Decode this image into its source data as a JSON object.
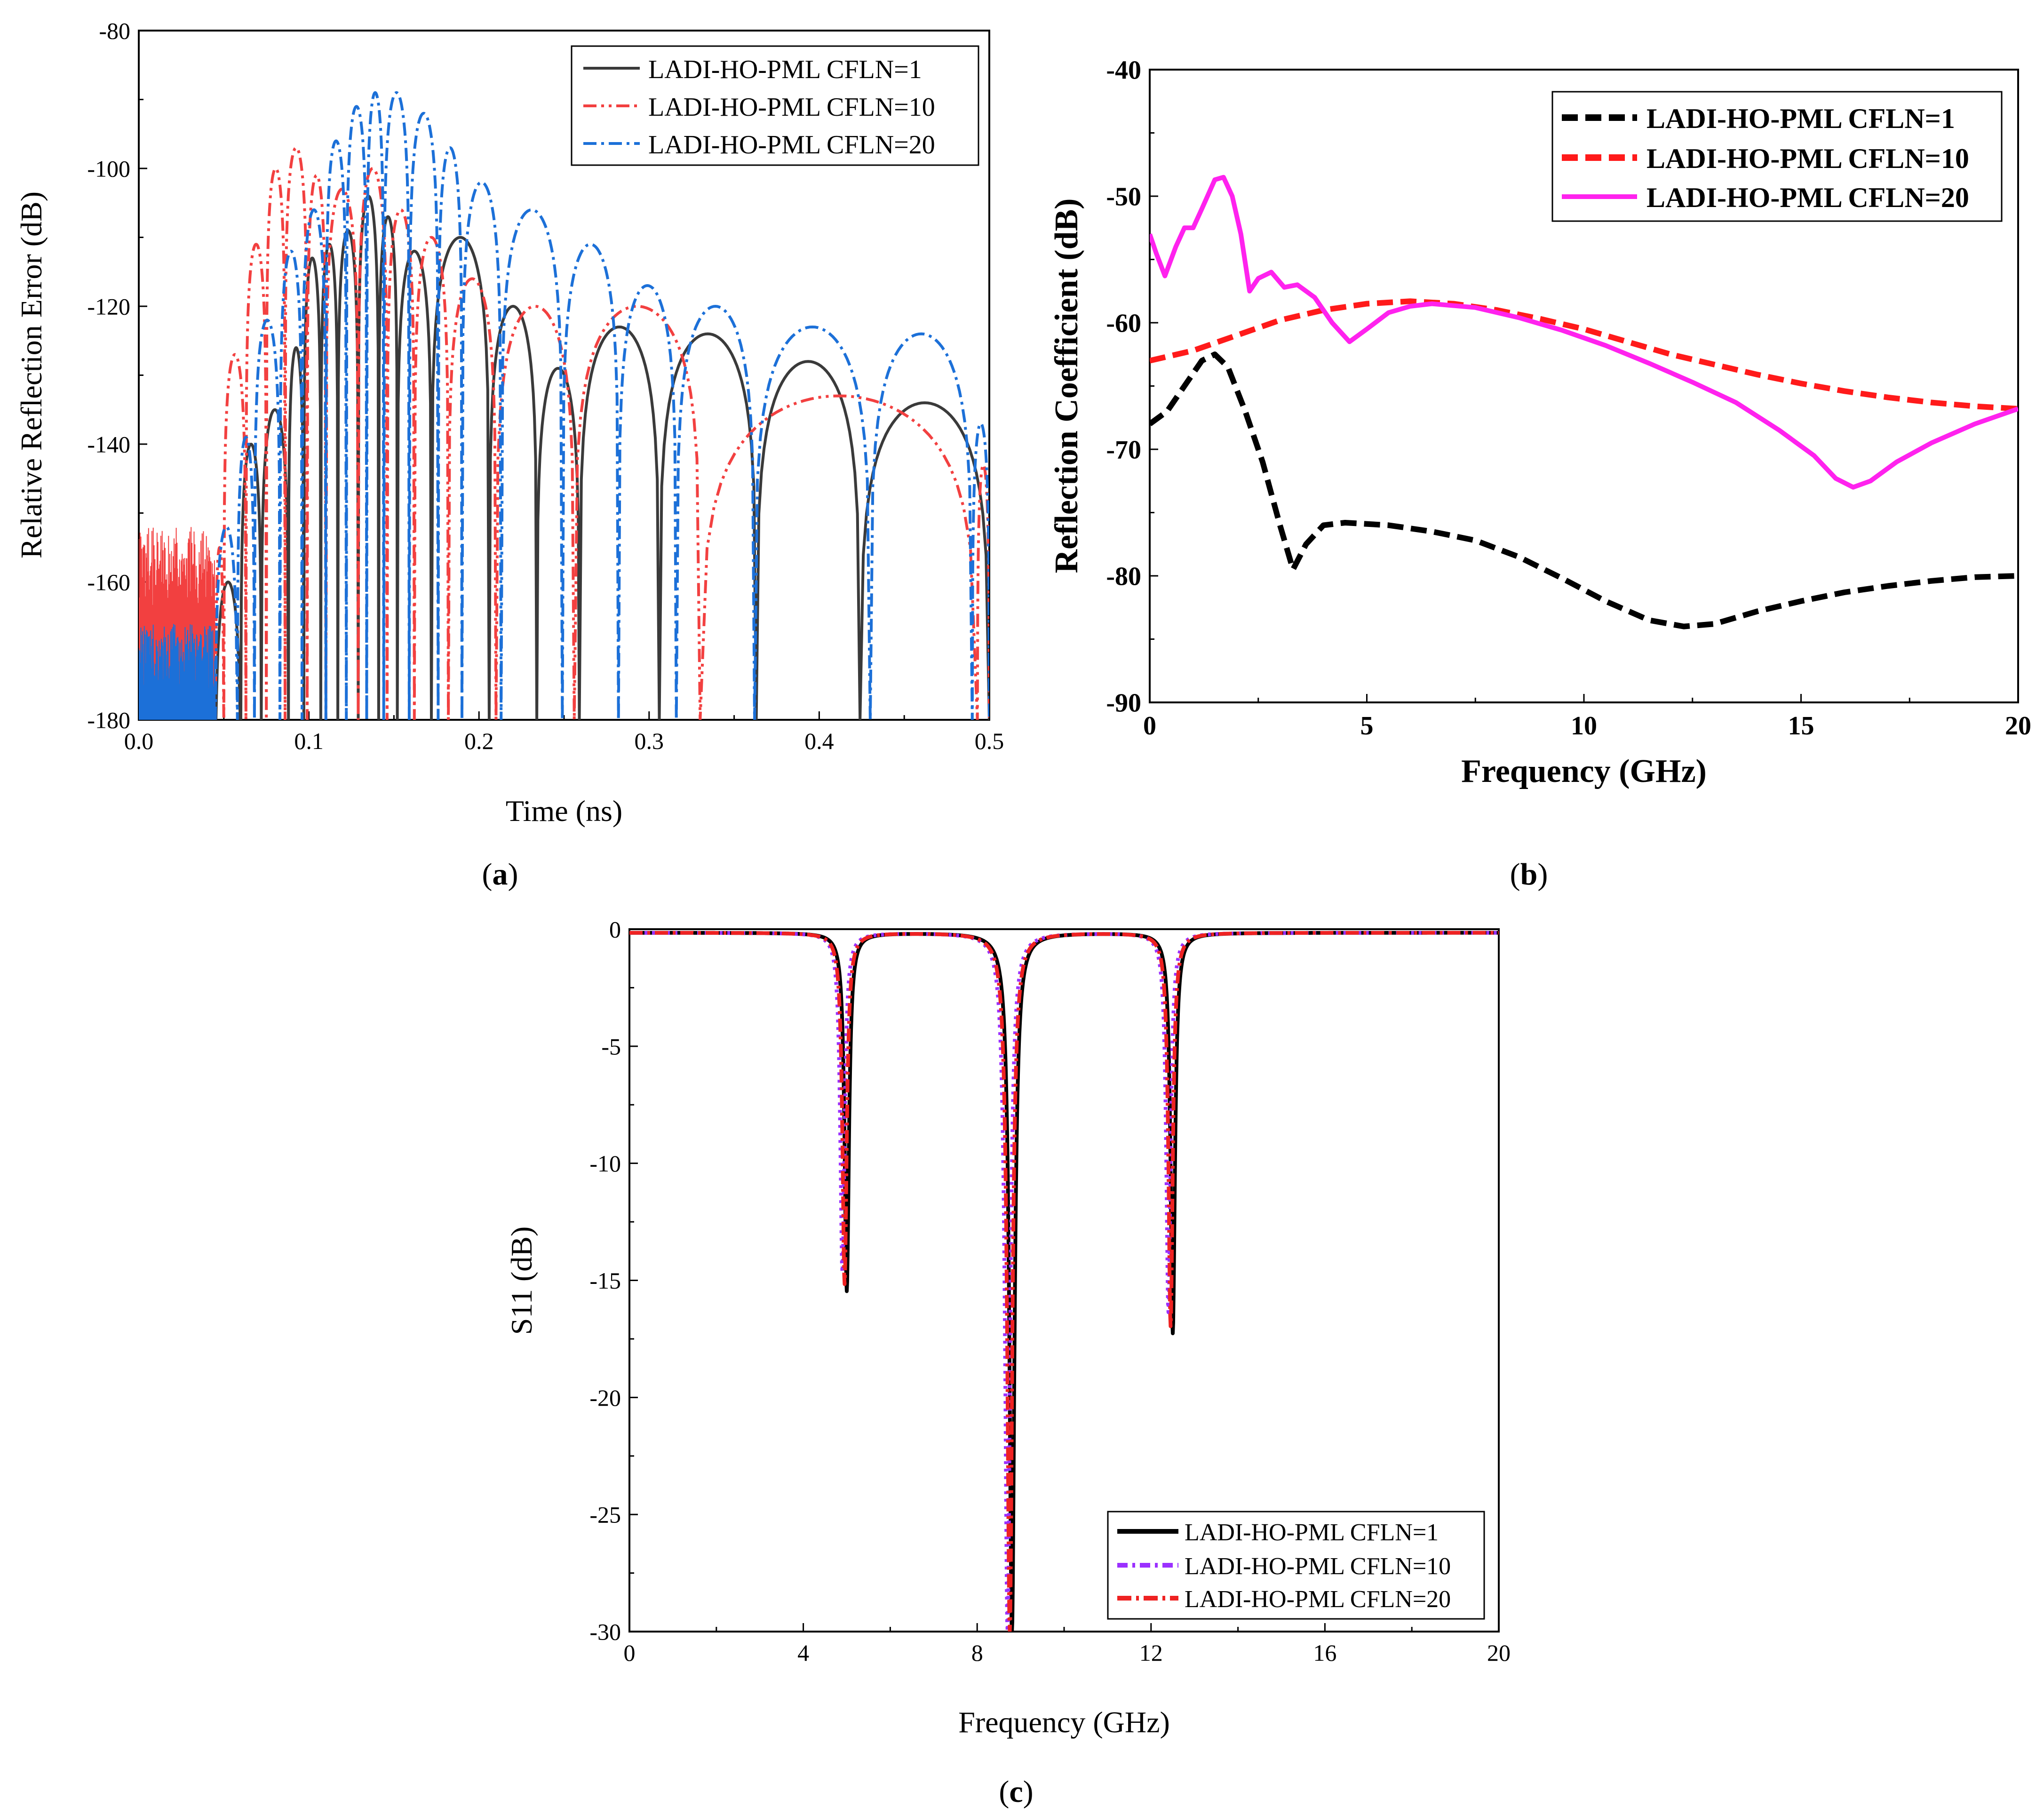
{
  "panel_labels": {
    "a": "a",
    "b": "b",
    "c": "c"
  },
  "chart_data": [
    {
      "id": "a",
      "type": "line",
      "xlabel": "Time (ns)",
      "ylabel": "Relative Reflection Error (dB)",
      "xlim": [
        0.0,
        0.5
      ],
      "ylim": [
        -180,
        -80
      ],
      "xticks": [
        "0.0",
        "0.1",
        "0.2",
        "0.3",
        "0.4",
        "0.5"
      ],
      "yticks": [
        "-80",
        "-100",
        "-120",
        "-140",
        "-160",
        "-180"
      ],
      "legend_position": "top-right",
      "series": [
        {
          "name": "LADI-HO-PML CFLN=1",
          "color": "#3a3a3a",
          "style": "solid",
          "noise_until": 0.045,
          "floor": -180,
          "lobes": [
            [
              0.045,
              0.06,
              -160
            ],
            [
              0.06,
              0.072,
              -140
            ],
            [
              0.072,
              0.088,
              -135
            ],
            [
              0.088,
              0.097,
              -126
            ],
            [
              0.097,
              0.107,
              -113
            ],
            [
              0.107,
              0.117,
              -111
            ],
            [
              0.117,
              0.129,
              -109
            ],
            [
              0.129,
              0.141,
              -104
            ],
            [
              0.141,
              0.152,
              -107
            ],
            [
              0.152,
              0.172,
              -112
            ],
            [
              0.172,
              0.206,
              -110
            ],
            [
              0.206,
              0.234,
              -120
            ],
            [
              0.234,
              0.259,
              -129
            ],
            [
              0.259,
              0.306,
              -123
            ],
            [
              0.306,
              0.363,
              -124
            ],
            [
              0.363,
              0.424,
              -128
            ],
            [
              0.424,
              0.5,
              -134
            ]
          ]
        },
        {
          "name": "LADI-HO-PML CFLN=10",
          "color": "#f24040",
          "style": "dash-dot-dot",
          "noise_until": 0.045,
          "floor": -180,
          "lobes": [
            [
              0.045,
              0.05,
              -155
            ],
            [
              0.05,
              0.063,
              -127
            ],
            [
              0.063,
              0.075,
              -111
            ],
            [
              0.075,
              0.086,
              -100
            ],
            [
              0.086,
              0.099,
              -97
            ],
            [
              0.099,
              0.11,
              -101
            ],
            [
              0.11,
              0.129,
              -103
            ],
            [
              0.129,
              0.146,
              -100
            ],
            [
              0.146,
              0.162,
              -106
            ],
            [
              0.162,
              0.182,
              -110
            ],
            [
              0.182,
              0.21,
              -116
            ],
            [
              0.21,
              0.256,
              -120
            ],
            [
              0.256,
              0.33,
              -120
            ],
            [
              0.33,
              0.493,
              -133
            ],
            [
              0.493,
              0.5,
              -143
            ]
          ]
        },
        {
          "name": "LADI-HO-PML CFLN=20",
          "color": "#1c70d8",
          "style": "dash-dot",
          "noise_until": 0.045,
          "floor": -180,
          "lobes": [
            [
              0.045,
              0.058,
              -152
            ],
            [
              0.058,
              0.068,
              -139
            ],
            [
              0.068,
              0.083,
              -122
            ],
            [
              0.083,
              0.096,
              -112
            ],
            [
              0.096,
              0.11,
              -106
            ],
            [
              0.11,
              0.122,
              -96
            ],
            [
              0.122,
              0.134,
              -91
            ],
            [
              0.134,
              0.144,
              -89
            ],
            [
              0.144,
              0.159,
              -89
            ],
            [
              0.159,
              0.176,
              -92
            ],
            [
              0.176,
              0.19,
              -97
            ],
            [
              0.19,
              0.213,
              -102
            ],
            [
              0.213,
              0.249,
              -106
            ],
            [
              0.249,
              0.282,
              -111
            ],
            [
              0.282,
              0.316,
              -117
            ],
            [
              0.316,
              0.362,
              -120
            ],
            [
              0.362,
              0.43,
              -123
            ],
            [
              0.43,
              0.49,
              -124
            ],
            [
              0.49,
              0.5,
              -137
            ]
          ]
        }
      ]
    },
    {
      "id": "b",
      "type": "line",
      "xlabel": "Frequency (GHz)",
      "ylabel": "Reflection Coefficient (dB)",
      "xlim": [
        0,
        20
      ],
      "ylim": [
        -90,
        -40
      ],
      "xticks": [
        "0",
        "5",
        "10",
        "15",
        "20"
      ],
      "yticks": [
        "-40",
        "-50",
        "-60",
        "-70",
        "-80",
        "-90"
      ],
      "legend_position": "top-right",
      "series": [
        {
          "name": "LADI-HO-PML CFLN=1",
          "color": "#000000",
          "style": "dash",
          "points": [
            [
              0,
              -68
            ],
            [
              0.4,
              -67
            ],
            [
              0.8,
              -65
            ],
            [
              1.2,
              -63
            ],
            [
              1.5,
              -62.5
            ],
            [
              1.8,
              -63.5
            ],
            [
              2.2,
              -67
            ],
            [
              2.6,
              -71
            ],
            [
              3.0,
              -76
            ],
            [
              3.3,
              -79.5
            ],
            [
              3.6,
              -77.5
            ],
            [
              4.0,
              -76
            ],
            [
              4.5,
              -75.8
            ],
            [
              5.5,
              -76
            ],
            [
              6.5,
              -76.5
            ],
            [
              7.5,
              -77.2
            ],
            [
              8.5,
              -78.5
            ],
            [
              9.5,
              -80.2
            ],
            [
              10.5,
              -82
            ],
            [
              11.5,
              -83.5
            ],
            [
              12.3,
              -84
            ],
            [
              13,
              -83.8
            ],
            [
              14,
              -82.8
            ],
            [
              15,
              -82
            ],
            [
              16,
              -81.3
            ],
            [
              17,
              -80.8
            ],
            [
              18,
              -80.4
            ],
            [
              19,
              -80.1
            ],
            [
              20,
              -80
            ]
          ]
        },
        {
          "name": "LADI-HO-PML CFLN=10",
          "color": "#ff1a1a",
          "style": "dash",
          "points": [
            [
              0,
              -63
            ],
            [
              1,
              -62.2
            ],
            [
              2,
              -61
            ],
            [
              3,
              -59.8
            ],
            [
              4,
              -59
            ],
            [
              5,
              -58.5
            ],
            [
              6,
              -58.3
            ],
            [
              7,
              -58.5
            ],
            [
              8,
              -59
            ],
            [
              9,
              -59.7
            ],
            [
              10,
              -60.5
            ],
            [
              11,
              -61.5
            ],
            [
              12,
              -62.5
            ],
            [
              13,
              -63.3
            ],
            [
              14,
              -64.1
            ],
            [
              15,
              -64.8
            ],
            [
              16,
              -65.4
            ],
            [
              17,
              -65.9
            ],
            [
              18,
              -66.3
            ],
            [
              19,
              -66.6
            ],
            [
              20,
              -66.8
            ]
          ]
        },
        {
          "name": "LADI-HO-PML CFLN=20",
          "color": "#ff22ee",
          "style": "solid",
          "points": [
            [
              0,
              -53
            ],
            [
              0.15,
              -54.5
            ],
            [
              0.35,
              -56.3
            ],
            [
              0.6,
              -54
            ],
            [
              0.8,
              -52.5
            ],
            [
              1.0,
              -52.5
            ],
            [
              1.2,
              -51
            ],
            [
              1.5,
              -48.7
            ],
            [
              1.7,
              -48.5
            ],
            [
              1.9,
              -50
            ],
            [
              2.1,
              -53
            ],
            [
              2.3,
              -57.5
            ],
            [
              2.5,
              -56.5
            ],
            [
              2.8,
              -56
            ],
            [
              3.1,
              -57.2
            ],
            [
              3.4,
              -57
            ],
            [
              3.8,
              -58
            ],
            [
              4.2,
              -60
            ],
            [
              4.6,
              -61.5
            ],
            [
              5.0,
              -60.5
            ],
            [
              5.5,
              -59.2
            ],
            [
              6.0,
              -58.7
            ],
            [
              6.5,
              -58.5
            ],
            [
              7.5,
              -58.8
            ],
            [
              8.5,
              -59.6
            ],
            [
              9.5,
              -60.6
            ],
            [
              10.5,
              -61.8
            ],
            [
              11.5,
              -63.2
            ],
            [
              12.5,
              -64.7
            ],
            [
              13.5,
              -66.3
            ],
            [
              14.5,
              -68.5
            ],
            [
              15.3,
              -70.5
            ],
            [
              15.8,
              -72.3
            ],
            [
              16.2,
              -73
            ],
            [
              16.6,
              -72.5
            ],
            [
              17.2,
              -71
            ],
            [
              18,
              -69.5
            ],
            [
              19,
              -68
            ],
            [
              20,
              -66.8
            ]
          ]
        }
      ]
    },
    {
      "id": "c",
      "type": "line",
      "xlabel": "Frequency (GHz)",
      "ylabel": "S11 (dB)",
      "xlim": [
        0,
        20
      ],
      "ylim": [
        -30,
        0
      ],
      "xticks": [
        "0",
        "4",
        "8",
        "12",
        "16",
        "20"
      ],
      "yticks": [
        "0",
        "-5",
        "-10",
        "-15",
        "-20",
        "-25",
        "-30"
      ],
      "legend_position": "bottom-right",
      "series": [
        {
          "name": "LADI-HO-PML CFLN=1",
          "color": "#000000",
          "style": "solid",
          "dips": [
            [
              5.0,
              -15.3,
              0.06
            ],
            [
              8.8,
              -30,
              0.07
            ],
            [
              12.5,
              -17.1,
              0.06
            ]
          ]
        },
        {
          "name": "LADI-HO-PML CFLN=10",
          "color": "#9b30ff",
          "style": "dot",
          "dips": [
            [
              4.9,
              -14.5,
              0.06
            ],
            [
              8.7,
              -30,
              0.07
            ],
            [
              12.4,
              -16.2,
              0.06
            ]
          ]
        },
        {
          "name": "LADI-HO-PML CFLN=20",
          "color": "#ee2222",
          "style": "dash-dot",
          "dips": [
            [
              4.95,
              -15.0,
              0.06
            ],
            [
              8.75,
              -30,
              0.07
            ],
            [
              12.45,
              -16.8,
              0.06
            ]
          ]
        }
      ]
    }
  ]
}
